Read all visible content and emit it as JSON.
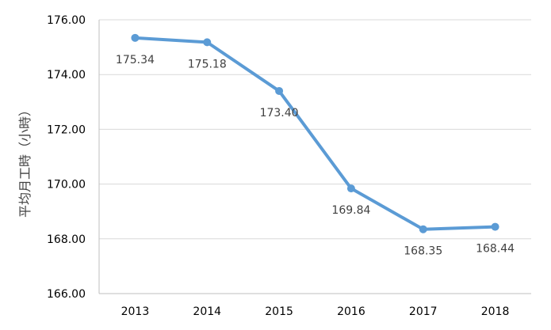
{
  "chart_data": {
    "type": "line",
    "categories": [
      "2013",
      "2014",
      "2015",
      "2016",
      "2017",
      "2018"
    ],
    "values": [
      175.34,
      175.18,
      173.4,
      169.84,
      168.35,
      168.44
    ],
    "data_labels": [
      "175.34",
      "175.18",
      "173.40",
      "169.84",
      "168.35",
      "168.44"
    ],
    "title": "",
    "xlabel": "",
    "ylabel": "平均月工時（小時）",
    "ylim": [
      166,
      176
    ],
    "yticks": [
      166,
      168,
      170,
      172,
      174,
      176
    ],
    "ytick_labels": [
      "166.00",
      "168.00",
      "170.00",
      "172.00",
      "174.00",
      "176.00"
    ],
    "grid": true,
    "legend": "none",
    "line_color": "#5b9bd5"
  }
}
